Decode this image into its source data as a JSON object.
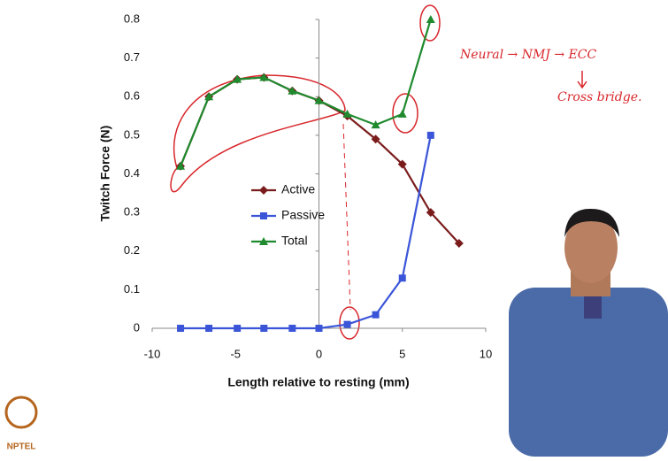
{
  "chart_data": {
    "type": "line",
    "x_label": "Length relative to resting (mm)",
    "y_label": "Twitch Force (N)",
    "xlim": [
      -10,
      10
    ],
    "xticks": [
      -10,
      -5,
      0,
      5,
      10
    ],
    "ylim": [
      0,
      0.8
    ],
    "yticks": [
      0,
      0.1,
      0.2,
      0.3,
      0.4,
      0.5,
      0.6,
      0.7,
      0.8
    ],
    "series": [
      {
        "name": "Active",
        "color": "#7b1c1c",
        "marker": "diamond",
        "x": [
          -8.3,
          -6.6,
          -4.9,
          -3.3,
          -1.6,
          0,
          1.7,
          3.4,
          5.0,
          6.7,
          8.4
        ],
        "values": [
          0.42,
          0.6,
          0.645,
          0.65,
          0.615,
          0.59,
          0.55,
          0.49,
          0.425,
          0.3,
          0.22
        ]
      },
      {
        "name": "Passive",
        "color": "#3a55d8",
        "marker": "square",
        "x": [
          -8.3,
          -6.6,
          -4.9,
          -3.3,
          -1.6,
          0,
          1.7,
          3.4,
          5.0,
          6.7
        ],
        "values": [
          0,
          0,
          0,
          0,
          0,
          0,
          0.01,
          0.035,
          0.13,
          0.5
        ]
      },
      {
        "name": "Total",
        "color": "#1f8a2e",
        "marker": "triangle",
        "x": [
          -8.3,
          -6.6,
          -4.9,
          -3.3,
          -1.6,
          0,
          1.7,
          3.4,
          5.0,
          6.7
        ],
        "values": [
          0.42,
          0.6,
          0.645,
          0.65,
          0.615,
          0.59,
          0.555,
          0.527,
          0.555,
          0.8
        ]
      }
    ],
    "annotations": [
      "Neural → NMJ → ECC",
      "Cross bridge."
    ],
    "logo": "NPTEL"
  }
}
